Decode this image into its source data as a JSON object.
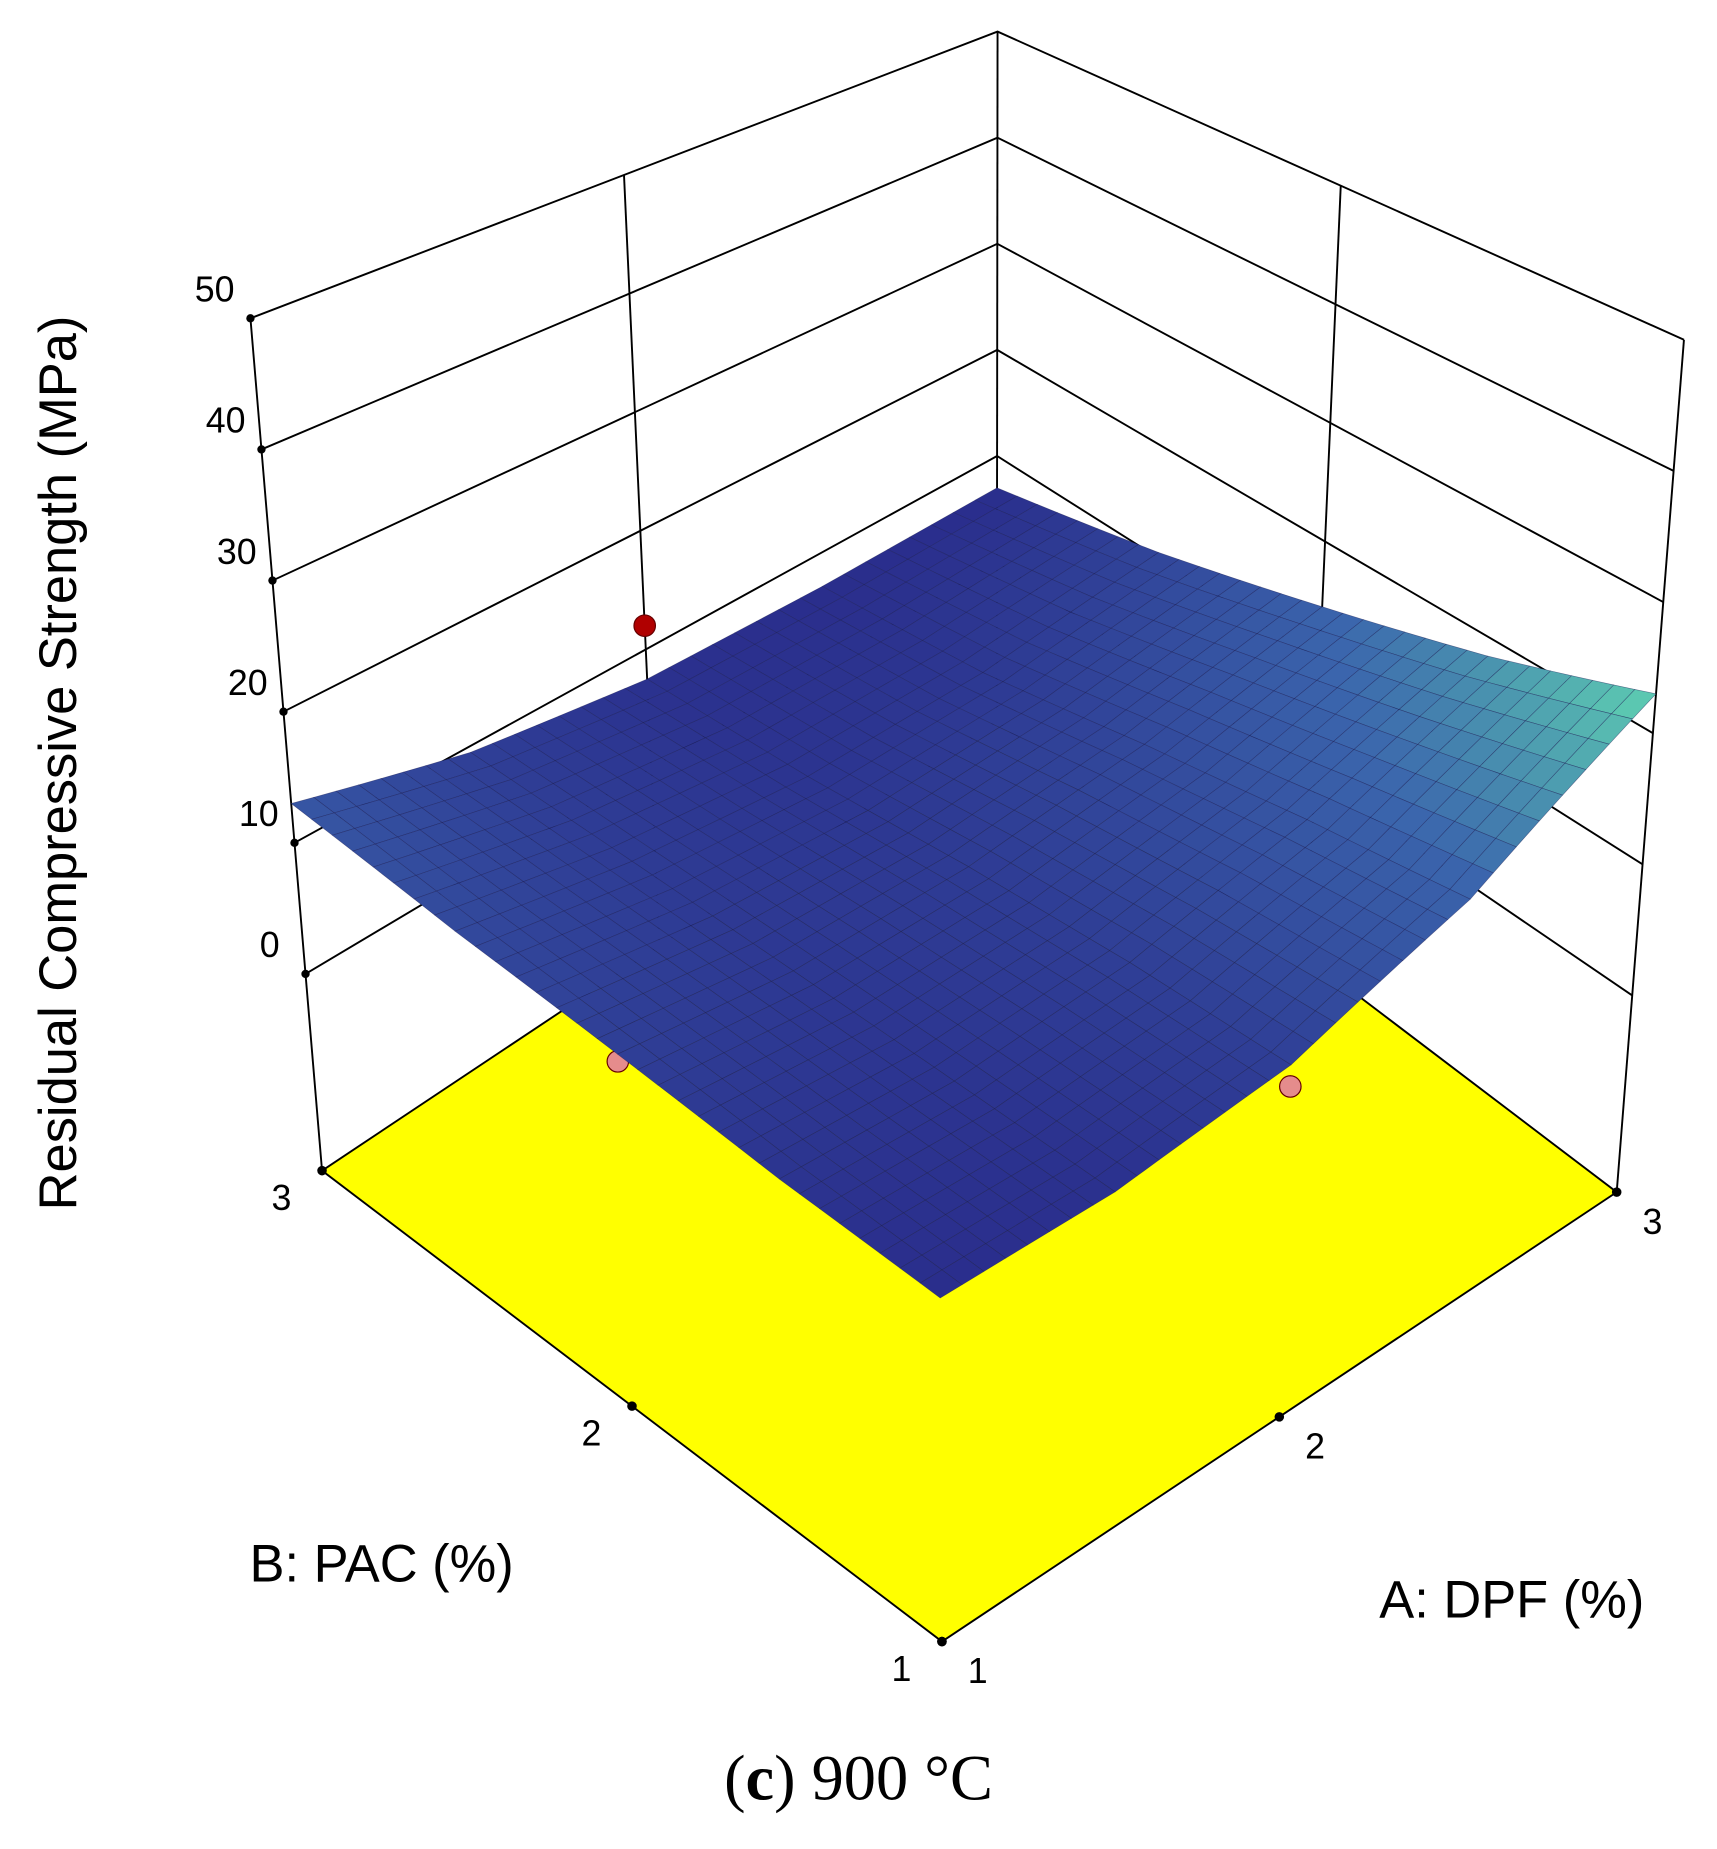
{
  "chart_data": {
    "type": "surface",
    "zlabel": "Residual Compressive Strength (MPa)",
    "xlabel": "A: DPF (%)",
    "ylabel": "B: PAC (%)",
    "caption": [
      "(",
      "c",
      ") 900 °C"
    ],
    "xlim": [
      1,
      3
    ],
    "xticks": [
      1,
      2,
      3
    ],
    "ylim": [
      1,
      3
    ],
    "yticks": [
      1,
      2,
      3
    ],
    "zlim": [
      -15,
      50
    ],
    "zticks": [
      0,
      10,
      20,
      30,
      40,
      50
    ],
    "floor_color": "#ffff00",
    "colormap": [
      "#2a2d8c",
      "#3b66ad",
      "#5fd2b2"
    ],
    "grid": true,
    "surface": {
      "a": [
        1,
        1.5,
        2,
        2.5,
        3
      ],
      "b": [
        1,
        1.5,
        2,
        2.5,
        3
      ],
      "z": [
        [
          7,
          7.5,
          9.5,
          14.5,
          23
        ],
        [
          8,
          8,
          9.5,
          13,
          18.5
        ],
        [
          9.5,
          8.5,
          9,
          11,
          14.5
        ],
        [
          11,
          9,
          8,
          8.5,
          10.5
        ],
        [
          13,
          9.5,
          7.5,
          7,
          7
        ]
      ]
    },
    "design_points": [
      {
        "a": 2,
        "b": 3,
        "z": 12,
        "color": "#b00000"
      },
      {
        "a": 1,
        "b": 2,
        "z": 9,
        "color": "#e58c8c"
      },
      {
        "a": 2,
        "b": 1,
        "z": 8,
        "color": "#e58c8c"
      }
    ]
  }
}
